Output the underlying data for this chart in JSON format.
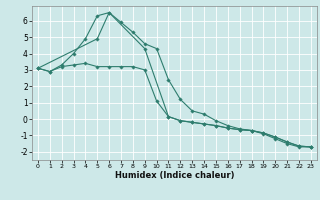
{
  "xlabel": "Humidex (Indice chaleur)",
  "background_color": "#cde8e8",
  "grid_color": "#ffffff",
  "line_color": "#2e7d6e",
  "xlim": [
    -0.5,
    23.5
  ],
  "ylim": [
    -2.5,
    6.9
  ],
  "yticks": [
    -2,
    -1,
    0,
    1,
    2,
    3,
    4,
    5,
    6
  ],
  "xticks": [
    0,
    1,
    2,
    3,
    4,
    5,
    6,
    7,
    8,
    9,
    10,
    11,
    12,
    13,
    14,
    15,
    16,
    17,
    18,
    19,
    20,
    21,
    22,
    23
  ],
  "series1_x": [
    0,
    1,
    2,
    3,
    4,
    5,
    6,
    7,
    8,
    9,
    10,
    11,
    12,
    13,
    14,
    15,
    16,
    17,
    18,
    19,
    20,
    21,
    22,
    23
  ],
  "series1_y": [
    3.1,
    2.9,
    3.3,
    4.0,
    4.9,
    6.3,
    6.5,
    5.9,
    5.3,
    4.6,
    4.3,
    2.4,
    1.2,
    0.5,
    0.3,
    -0.1,
    -0.4,
    -0.6,
    -0.7,
    -0.9,
    -1.2,
    -1.5,
    -1.7,
    -1.7
  ],
  "series2_x": [
    0,
    1,
    2,
    3,
    4,
    5,
    6,
    7,
    8,
    9,
    10,
    11,
    12,
    13,
    14,
    15,
    16,
    17,
    18,
    19,
    20,
    21,
    22,
    23
  ],
  "series2_y": [
    3.1,
    2.9,
    3.2,
    3.3,
    3.4,
    3.2,
    3.2,
    3.2,
    3.2,
    3.0,
    1.1,
    0.15,
    -0.1,
    -0.2,
    -0.3,
    -0.4,
    -0.55,
    -0.65,
    -0.7,
    -0.85,
    -1.1,
    -1.4,
    -1.65,
    -1.7
  ],
  "series3_x": [
    0,
    5,
    6,
    9,
    11,
    12,
    13,
    14,
    15,
    16,
    17,
    18,
    19,
    20,
    21,
    22,
    23
  ],
  "series3_y": [
    3.1,
    4.9,
    6.5,
    4.3,
    0.15,
    -0.1,
    -0.2,
    -0.3,
    -0.4,
    -0.55,
    -0.65,
    -0.7,
    -0.85,
    -1.1,
    -1.4,
    -1.65,
    -1.7
  ],
  "xlabel_fontsize": 6.0,
  "ytick_fontsize": 5.5,
  "xtick_fontsize": 4.5
}
